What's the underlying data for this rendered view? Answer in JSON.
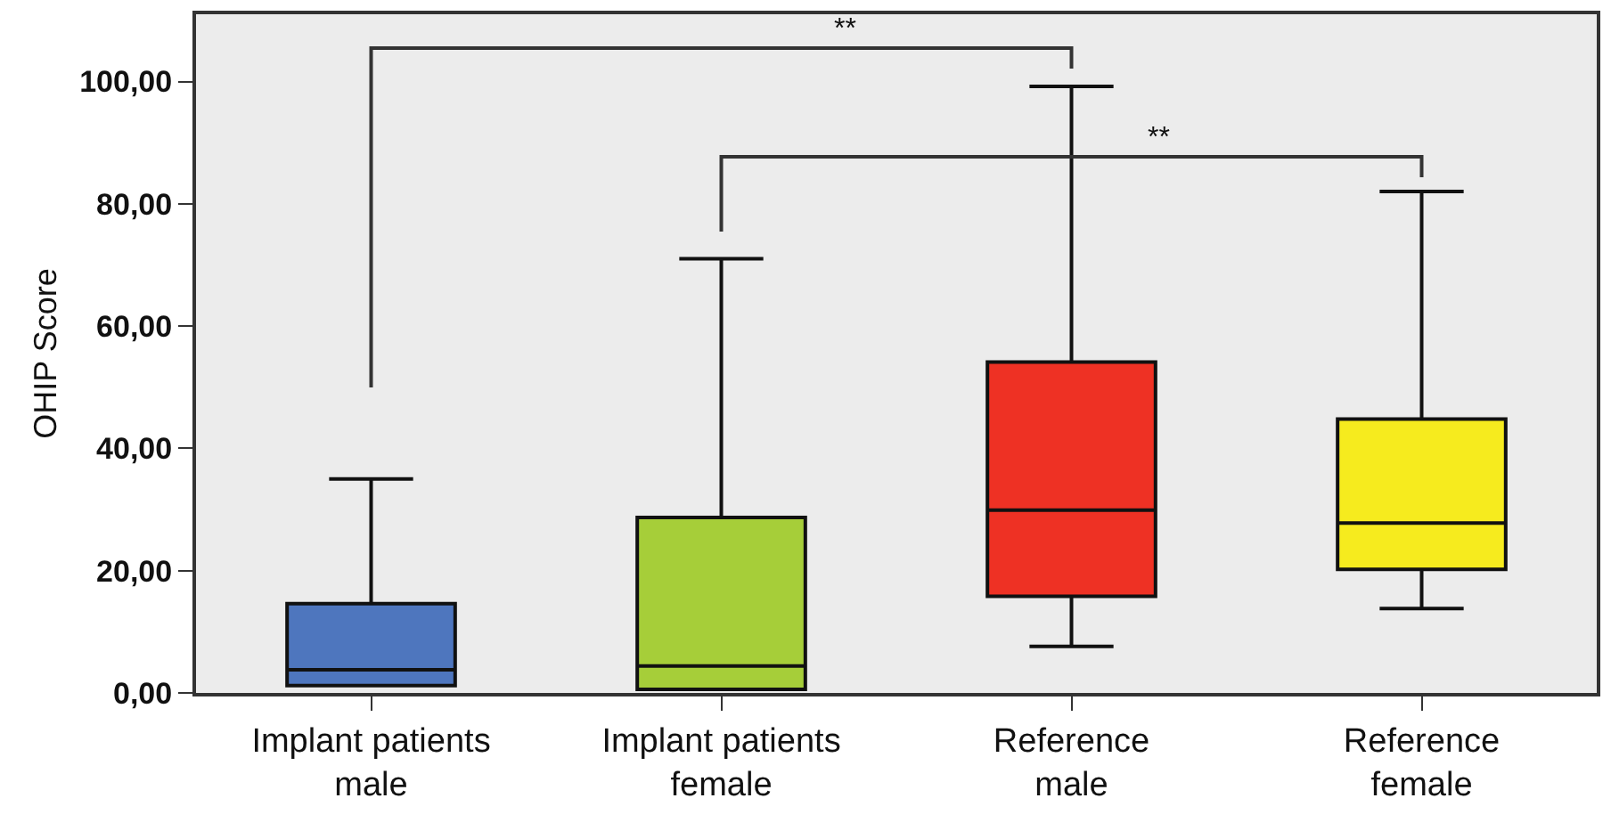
{
  "chart_data": {
    "type": "box",
    "ylabel": "OHIP Score",
    "categories": [
      "Implant patients male",
      "Implant patients female",
      "Reference male",
      "Reference female"
    ],
    "colors": [
      "#4e76be",
      "#a6ce39",
      "#ee3124",
      "#f6eb1e"
    ],
    "boxes": [
      {
        "low": 1.2,
        "q1": 1.2,
        "median": 3.8,
        "q3": 14.6,
        "high": 35
      },
      {
        "low": 0.6,
        "q1": 0.6,
        "median": 4.4,
        "q3": 28.7,
        "high": 71
      },
      {
        "low": 7.6,
        "q1": 15.8,
        "median": 29.9,
        "q3": 54.1,
        "high": 99.2
      },
      {
        "low": 13.8,
        "q1": 20.2,
        "median": 27.8,
        "q3": 44.8,
        "high": 82
      }
    ],
    "ylim": [
      0,
      111
    ],
    "yticks": [
      {
        "value": 0,
        "label": "0,00"
      },
      {
        "value": 20,
        "label": "20,00"
      },
      {
        "value": 40,
        "label": "40,00"
      },
      {
        "value": 60,
        "label": "60,00"
      },
      {
        "value": 80,
        "label": "80,00"
      },
      {
        "value": 100,
        "label": "100,00"
      }
    ],
    "annotations": [
      "**",
      "**"
    ]
  }
}
